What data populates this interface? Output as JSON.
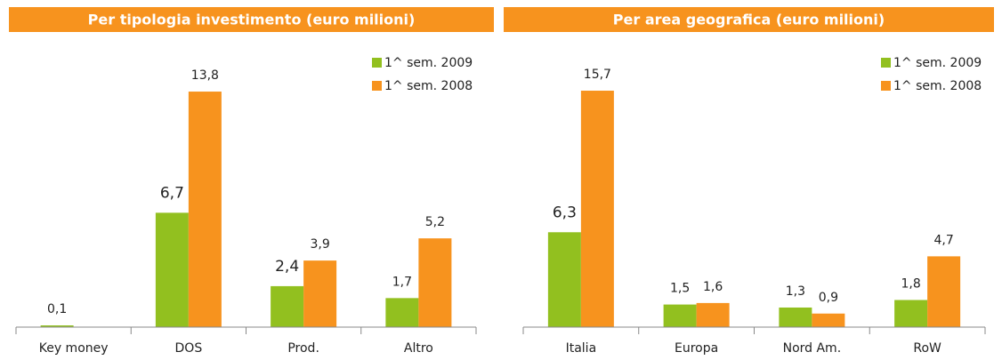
{
  "chart_data": [
    {
      "type": "bar",
      "title": "Per tipologia investimento (euro milioni)",
      "categories": [
        "Key money",
        "DOS",
        "Prod.",
        "Altro"
      ],
      "series": [
        {
          "name": "1^ sem. 2009",
          "color": "#92c01f",
          "values": [
            0.1,
            6.7,
            2.4,
            1.7
          ],
          "value_labels": [
            "0,1",
            "6,7",
            "2,4",
            "1,7"
          ]
        },
        {
          "name": "1^ sem. 2008",
          "color": "#f7931e",
          "values": [
            null,
            13.8,
            3.9,
            5.2
          ],
          "value_labels": [
            null,
            "13,8",
            "3,9",
            "5,2"
          ]
        }
      ],
      "ylim": [
        0,
        15
      ],
      "legend": "top-right"
    },
    {
      "type": "bar",
      "title": "Per area geografica (euro milioni)",
      "categories": [
        "Italia",
        "Europa",
        "Nord Am.",
        "RoW"
      ],
      "series": [
        {
          "name": "1^ sem. 2009",
          "color": "#92c01f",
          "values": [
            6.3,
            1.5,
            1.3,
            1.8
          ],
          "value_labels": [
            "6,3",
            "1,5",
            "1,3",
            "1,8"
          ]
        },
        {
          "name": "1^ sem. 2008",
          "color": "#f7931e",
          "values": [
            15.7,
            1.6,
            0.9,
            4.7
          ],
          "value_labels": [
            "15,7",
            "1,6",
            "0,9",
            "4,7"
          ]
        }
      ],
      "ylim": [
        0,
        17
      ],
      "legend": "top-right"
    }
  ]
}
